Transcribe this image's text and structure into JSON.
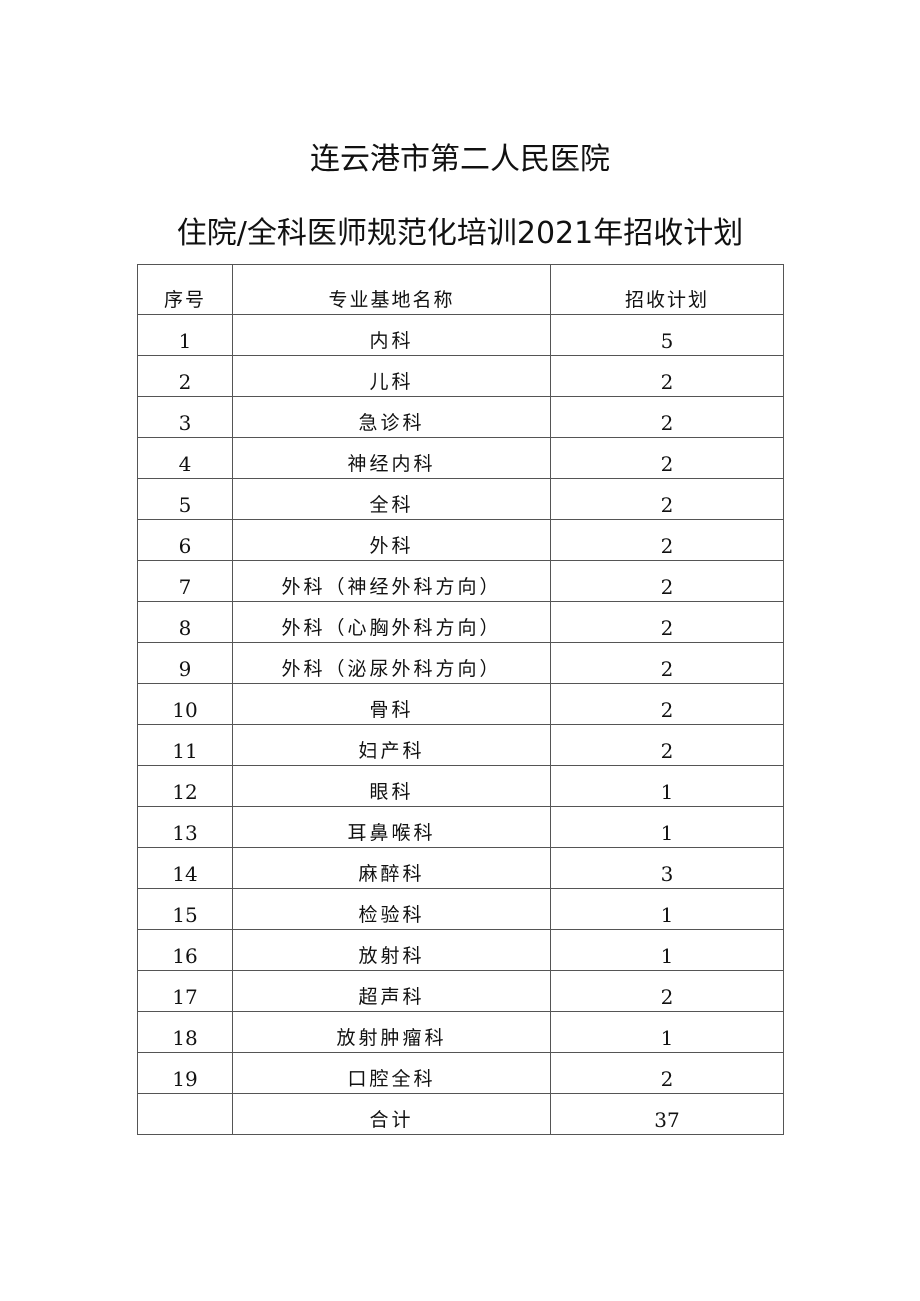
{
  "title_line1": "连云港市第二人民医院",
  "title_line2": "住院/全科医师规范化培训2021年招收计划",
  "table": {
    "headers": [
      "序号",
      "专业基地名称",
      "招收计划"
    ],
    "rows": [
      [
        "1",
        "内科",
        "5"
      ],
      [
        "2",
        "儿科",
        "2"
      ],
      [
        "3",
        "急诊科",
        "2"
      ],
      [
        "4",
        "神经内科",
        "2"
      ],
      [
        "5",
        "全科",
        "2"
      ],
      [
        "6",
        "外科",
        "2"
      ],
      [
        "7",
        "外科（神经外科方向）",
        "2"
      ],
      [
        "8",
        "外科（心胸外科方向）",
        "2"
      ],
      [
        "9",
        "外科（泌尿外科方向）",
        "2"
      ],
      [
        "10",
        "骨科",
        "2"
      ],
      [
        "11",
        "妇产科",
        "2"
      ],
      [
        "12",
        "眼科",
        "1"
      ],
      [
        "13",
        "耳鼻喉科",
        "1"
      ],
      [
        "14",
        "麻醉科",
        "3"
      ],
      [
        "15",
        "检验科",
        "1"
      ],
      [
        "16",
        "放射科",
        "1"
      ],
      [
        "17",
        "超声科",
        "2"
      ],
      [
        "18",
        "放射肿瘤科",
        "1"
      ],
      [
        "19",
        "口腔全科",
        "2"
      ],
      [
        "",
        "合计",
        "37"
      ]
    ]
  }
}
